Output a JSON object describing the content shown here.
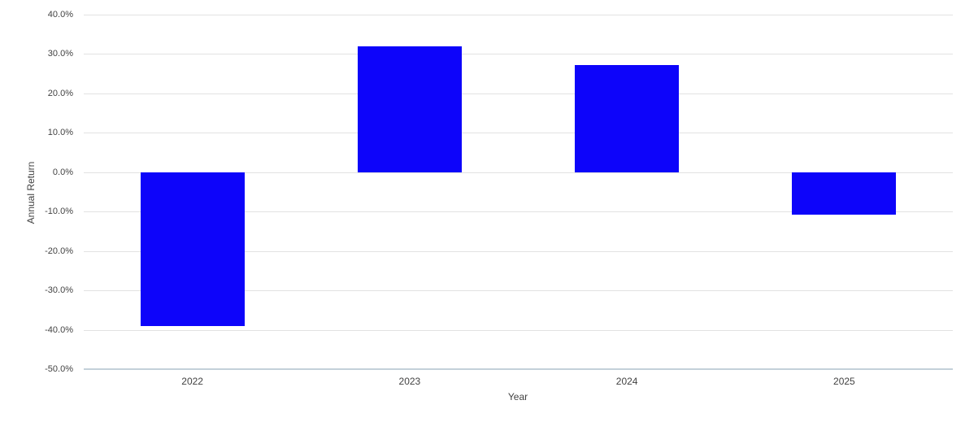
{
  "chart_data": {
    "type": "bar",
    "categories": [
      "2022",
      "2023",
      "2024",
      "2025"
    ],
    "values": [
      -39.0,
      32.0,
      27.1,
      -10.8
    ],
    "title": "",
    "xlabel": "Year",
    "ylabel": "Annual Return",
    "ylim": [
      -50,
      40
    ],
    "yticks": [
      40,
      30,
      20,
      10,
      0,
      -10,
      -20,
      -30,
      -40,
      -50
    ],
    "ytick_labels": [
      "40.0%",
      "30.0%",
      "20.0%",
      "10.0%",
      "0.0%",
      "-10.0%",
      "-20.0%",
      "-30.0%",
      "-40.0%",
      "-50.0%"
    ],
    "grid": "on",
    "legend": "none",
    "bar_color": "#0d04fa",
    "grid_color": "#e2e2e2",
    "baseline_color": "#c4d1da",
    "text_color": "#424242",
    "background_color": "#ffffff"
  }
}
